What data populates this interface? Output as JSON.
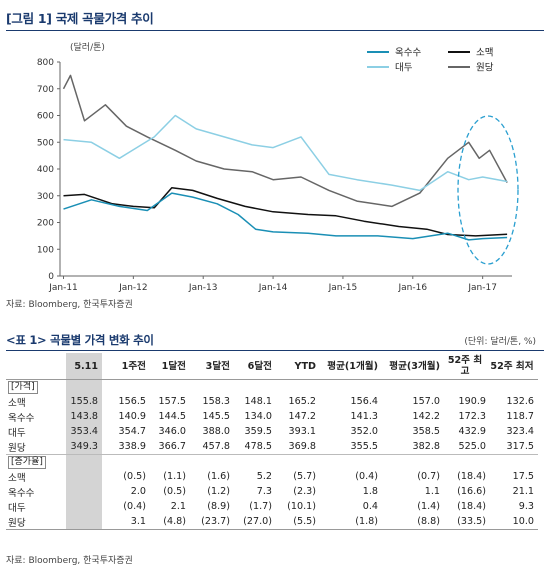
{
  "figure": {
    "title": "[그림 1] 국제 곡물가격 추이",
    "unit": "(달러/톤)",
    "source": "자료: Bloomberg, 한국투자증권"
  },
  "chart_data": {
    "type": "line",
    "x_ticks": [
      "Jan-11",
      "Jan-12",
      "Jan-13",
      "Jan-14",
      "Jan-15",
      "Jan-16",
      "Jan-17"
    ],
    "ylim": [
      0,
      800
    ],
    "y_ticks": [
      0,
      100,
      200,
      300,
      400,
      500,
      600,
      700,
      800
    ],
    "legend": [
      "옥수수",
      "소맥",
      "대두",
      "원당"
    ],
    "legend_position": "top-right",
    "series": [
      {
        "name": "옥수수",
        "color": "#1a8fb5",
        "x": [
          2011.0,
          2011.4,
          2011.8,
          2012.2,
          2012.55,
          2012.85,
          2013.2,
          2013.5,
          2013.75,
          2014.0,
          2014.5,
          2014.9,
          2015.5,
          2016.0,
          2016.5,
          2016.8,
          2017.0,
          2017.35
        ],
        "y": [
          250,
          285,
          260,
          245,
          310,
          295,
          270,
          230,
          175,
          165,
          160,
          150,
          150,
          140,
          160,
          135,
          140,
          143.8
        ]
      },
      {
        "name": "소맥",
        "color": "#111111",
        "x": [
          2011.0,
          2011.3,
          2011.7,
          2012.0,
          2012.3,
          2012.55,
          2012.85,
          2013.2,
          2013.6,
          2014.0,
          2014.5,
          2014.9,
          2015.3,
          2015.8,
          2016.2,
          2016.5,
          2016.9,
          2017.35
        ],
        "y": [
          300,
          305,
          270,
          260,
          255,
          330,
          320,
          290,
          260,
          240,
          230,
          225,
          205,
          185,
          175,
          155,
          150,
          155.8
        ]
      },
      {
        "name": "대두",
        "color": "#8ccfe4",
        "x": [
          2011.0,
          2011.4,
          2011.8,
          2012.3,
          2012.6,
          2012.9,
          2013.3,
          2013.7,
          2014.0,
          2014.4,
          2014.8,
          2015.2,
          2015.7,
          2016.1,
          2016.5,
          2016.8,
          2017.0,
          2017.35
        ],
        "y": [
          510,
          500,
          440,
          520,
          600,
          550,
          520,
          490,
          480,
          520,
          380,
          360,
          340,
          320,
          390,
          360,
          370,
          353.4
        ]
      },
      {
        "name": "원당",
        "color": "#666666",
        "x": [
          2011.0,
          2011.1,
          2011.3,
          2011.6,
          2011.9,
          2012.2,
          2012.6,
          2012.9,
          2013.3,
          2013.7,
          2014.0,
          2014.4,
          2014.8,
          2015.2,
          2015.7,
          2016.1,
          2016.5,
          2016.8,
          2016.95,
          2017.1,
          2017.35
        ],
        "y": [
          700,
          750,
          580,
          640,
          560,
          520,
          470,
          430,
          400,
          390,
          360,
          370,
          320,
          280,
          260,
          310,
          440,
          500,
          440,
          470,
          349.3
        ]
      }
    ]
  },
  "table": {
    "title": "<표 1> 곡물별 가격 변화 추이",
    "unit": "(단위: 달러/톤, %)",
    "headers": [
      "",
      "5.11",
      "1주전",
      "1달전",
      "3달전",
      "6달전",
      "YTD",
      "평균(1개월)",
      "평균(3개월)",
      "52주 최고",
      "52주 최저"
    ],
    "section_price": "[가격]",
    "price_rows": [
      [
        "소맥",
        "155.8",
        "156.5",
        "157.5",
        "158.3",
        "148.1",
        "165.2",
        "156.4",
        "157.0",
        "190.9",
        "132.6"
      ],
      [
        "옥수수",
        "143.8",
        "140.9",
        "144.5",
        "145.5",
        "134.0",
        "147.2",
        "141.3",
        "142.2",
        "172.3",
        "118.7"
      ],
      [
        "대두",
        "353.4",
        "354.7",
        "346.0",
        "388.0",
        "359.5",
        "393.1",
        "352.0",
        "358.5",
        "432.9",
        "323.4"
      ],
      [
        "원당",
        "349.3",
        "338.9",
        "366.7",
        "457.8",
        "478.5",
        "369.8",
        "355.5",
        "382.8",
        "525.0",
        "317.5"
      ]
    ],
    "section_change": "[증가율]",
    "change_rows": [
      [
        "소맥",
        "",
        "(0.5)",
        "(1.1)",
        "(1.6)",
        "5.2",
        "(5.7)",
        "(0.4)",
        "(0.7)",
        "(18.4)",
        "17.5"
      ],
      [
        "옥수수",
        "",
        "2.0",
        "(0.5)",
        "(1.2)",
        "7.3",
        "(2.3)",
        "1.8",
        "1.1",
        "(16.6)",
        "21.1"
      ],
      [
        "대두",
        "",
        "(0.4)",
        "2.1",
        "(8.9)",
        "(1.7)",
        "(10.1)",
        "0.4",
        "(1.4)",
        "(18.4)",
        "9.3"
      ],
      [
        "원당",
        "",
        "3.1",
        "(4.8)",
        "(23.7)",
        "(27.0)",
        "(5.5)",
        "(1.8)",
        "(8.8)",
        "(33.5)",
        "10.0"
      ]
    ],
    "source": "자료: Bloomberg, 한국투자증권"
  }
}
